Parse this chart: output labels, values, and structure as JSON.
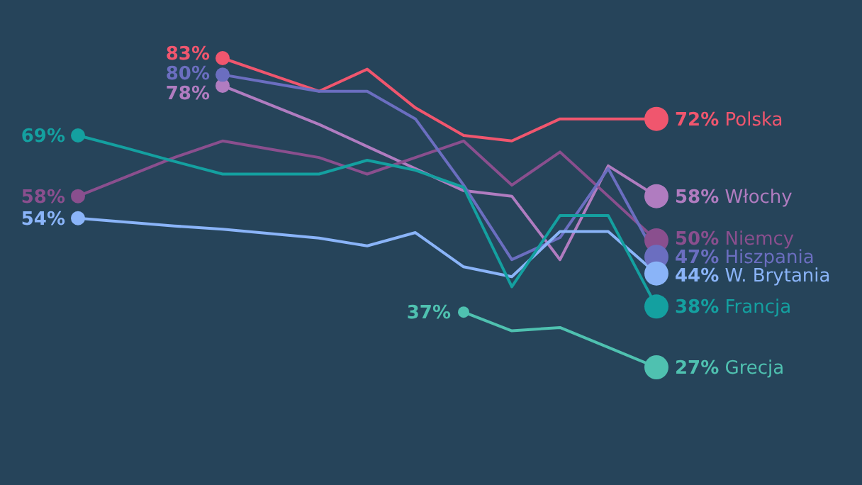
{
  "chart_data": {
    "type": "line",
    "categories": [
      null,
      null,
      null,
      null,
      null,
      null,
      null,
      null,
      null,
      null,
      null,
      null,
      null
    ],
    "line_style": "solid",
    "series": [
      {
        "name": "Polska",
        "color": "#f0566e",
        "values": [
          null,
          null,
          null,
          83,
          80,
          77,
          81,
          74,
          69,
          68,
          72,
          72,
          72
        ],
        "value_labels": [
          null,
          null,
          null,
          "83%",
          null,
          null,
          null,
          null,
          null,
          null,
          null,
          null,
          "72%"
        ]
      },
      {
        "name": "Włochy",
        "color": "#b07cc0",
        "values": [
          null,
          null,
          null,
          78,
          74.5,
          71,
          67,
          63,
          59,
          58,
          46.5,
          63.5,
          58
        ],
        "value_labels": [
          null,
          null,
          null,
          "78%",
          null,
          null,
          null,
          null,
          null,
          null,
          null,
          null,
          "58%"
        ]
      },
      {
        "name": "Niemcy",
        "color": "#8a4f8e",
        "values": [
          58,
          61.5,
          65,
          68,
          66.5,
          65,
          62,
          65,
          68,
          60,
          66,
          58,
          50
        ],
        "value_labels": [
          "58%",
          null,
          null,
          null,
          null,
          null,
          null,
          null,
          null,
          null,
          null,
          null,
          "50%"
        ]
      },
      {
        "name": "Hiszpania",
        "color": "#6b6ec0",
        "values": [
          null,
          null,
          null,
          80,
          78.5,
          77,
          77,
          72,
          60,
          46.5,
          50.5,
          63,
          47
        ],
        "value_labels": [
          null,
          null,
          null,
          "80%",
          null,
          null,
          null,
          null,
          null,
          null,
          null,
          null,
          "47%"
        ]
      },
      {
        "name": "W. Brytania",
        "color": "#8ab4f8",
        "values": [
          54,
          53.3,
          52.6,
          52,
          51.2,
          50.4,
          49,
          51.4,
          45.2,
          43.4,
          51.6,
          51.6,
          44
        ],
        "value_labels": [
          "54%",
          null,
          null,
          null,
          null,
          null,
          null,
          null,
          null,
          null,
          null,
          null,
          "44%"
        ]
      },
      {
        "name": "Francja",
        "color": "#14a0a0",
        "values": [
          69,
          66.7,
          64.3,
          62,
          62,
          62,
          64.5,
          62.7,
          59.6,
          41.6,
          54.5,
          54.5,
          38
        ],
        "value_labels": [
          "69%",
          null,
          null,
          null,
          null,
          null,
          null,
          null,
          null,
          null,
          null,
          null,
          "38%"
        ]
      },
      {
        "name": "Grecja",
        "color": "#4fc1b0",
        "values": [
          null,
          null,
          null,
          null,
          null,
          null,
          null,
          null,
          37,
          33.6,
          34.2,
          30.6,
          27
        ],
        "value_labels": [
          null,
          null,
          null,
          null,
          null,
          null,
          null,
          null,
          "37%",
          null,
          null,
          null,
          "27%"
        ]
      }
    ]
  }
}
